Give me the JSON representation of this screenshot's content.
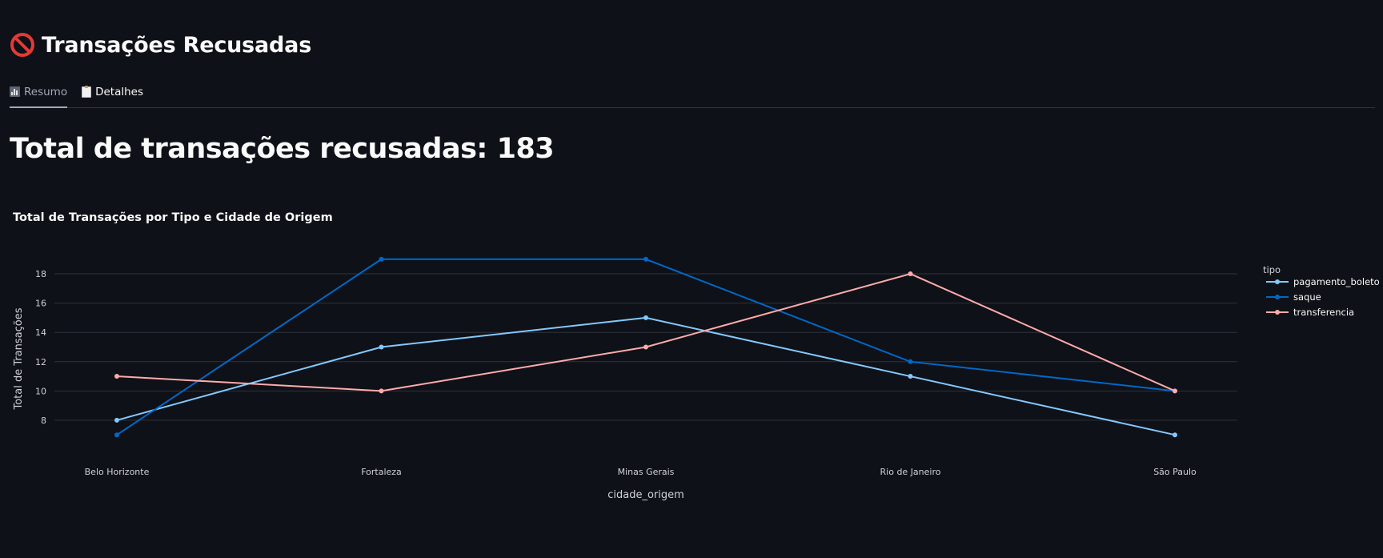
{
  "page": {
    "title": "Transações Recusadas",
    "title_icon": "prohibited-icon",
    "tabs": [
      {
        "label": "Resumo",
        "icon": "bar-chart-icon",
        "active": true
      },
      {
        "label": "Detalhes",
        "icon": "clipboard-icon",
        "active": false
      }
    ],
    "metric_text": "Total de transações recusadas: 183"
  },
  "colors": {
    "background": "#0e1117",
    "pagamento_boleto": "#83c9ff",
    "saque": "#0068c9",
    "transferencia": "#ffabab"
  },
  "chart_data": {
    "type": "line",
    "title": "Total de Transações por Tipo e Cidade de Origem",
    "xlabel": "cidade_origem",
    "ylabel": "Total de Transações",
    "categories": [
      "Belo Horizonte",
      "Fortaleza",
      "Minas Gerais",
      "Rio de Janeiro",
      "São Paulo"
    ],
    "ylim": [
      6.3,
      20.3
    ],
    "yticks": [
      8,
      10,
      12,
      14,
      16,
      18
    ],
    "grid": true,
    "legend_title": "tipo",
    "legend_position": "top-right",
    "series": [
      {
        "name": "pagamento_boleto",
        "values": [
          8,
          13,
          15,
          11,
          7
        ]
      },
      {
        "name": "saque",
        "values": [
          7,
          19,
          19,
          12,
          10
        ]
      },
      {
        "name": "transferencia",
        "values": [
          11,
          10,
          13,
          18,
          10
        ]
      }
    ]
  }
}
